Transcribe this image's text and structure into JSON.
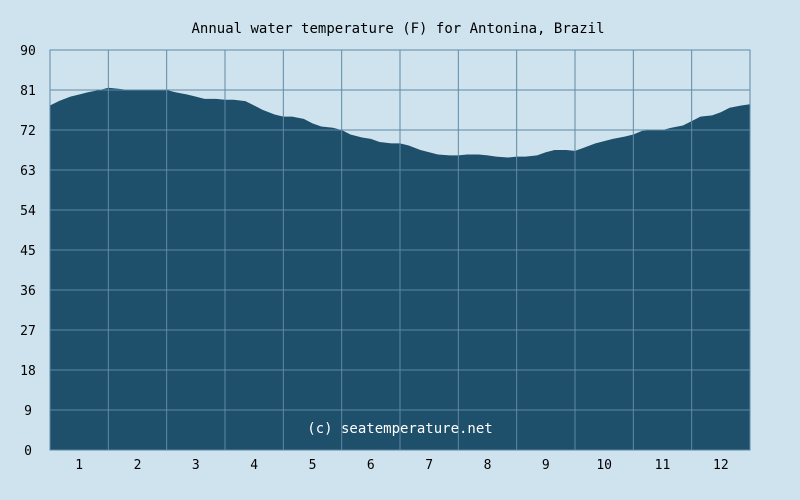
{
  "chart_data": {
    "type": "area",
    "title": "Annual water temperature (F) for Antonina, Brazil",
    "xlabel": "",
    "ylabel": "",
    "categories": [
      "1",
      "2",
      "3",
      "4",
      "5",
      "6",
      "7",
      "8",
      "9",
      "10",
      "11",
      "12"
    ],
    "xlim": [
      0.5,
      12.5
    ],
    "ylim": [
      0,
      90
    ],
    "y_ticks": [
      0,
      9,
      18,
      27,
      36,
      45,
      54,
      63,
      72,
      81,
      90
    ],
    "grid": true,
    "legend": "none",
    "annotation": "(c) seatemperature.net",
    "series": [
      {
        "x": [
          0.5,
          0.65,
          0.85,
          1.0,
          1.15,
          1.35,
          1.5,
          1.65,
          1.85,
          2.0,
          2.15,
          2.35,
          2.5,
          2.65,
          2.85,
          3.0,
          3.15,
          3.35,
          3.5,
          3.65,
          3.85,
          4.0,
          4.15,
          4.35,
          4.5,
          4.65,
          4.85,
          5.0,
          5.15,
          5.35,
          5.5,
          5.65,
          5.85,
          6.0,
          6.15,
          6.35,
          6.5,
          6.65,
          6.85,
          7.0,
          7.15,
          7.35,
          7.5,
          7.65,
          7.85,
          8.0,
          8.15,
          8.35,
          8.5,
          8.65,
          8.85,
          9.0,
          9.15,
          9.35,
          9.5,
          9.65,
          9.85,
          10.0,
          10.15,
          10.35,
          10.5,
          10.65,
          10.85,
          11.0,
          11.15,
          11.35,
          11.5,
          11.65,
          11.85,
          12.0,
          12.15,
          12.35,
          12.5
        ],
        "values": [
          77.5,
          78.5,
          79.5,
          80.0,
          80.5,
          81.0,
          81.5,
          81.3,
          81.0,
          81.0,
          81.0,
          81.0,
          81.0,
          80.5,
          80.0,
          79.5,
          79.0,
          79.0,
          78.8,
          78.8,
          78.5,
          77.5,
          76.5,
          75.5,
          75.0,
          75.0,
          74.5,
          73.5,
          72.8,
          72.5,
          72.0,
          71.0,
          70.3,
          70.0,
          69.3,
          69.0,
          69.0,
          68.5,
          67.5,
          67.0,
          66.5,
          66.3,
          66.3,
          66.5,
          66.5,
          66.3,
          66.0,
          65.8,
          66.0,
          66.0,
          66.3,
          67.0,
          67.5,
          67.5,
          67.3,
          68.0,
          69.0,
          69.5,
          70.0,
          70.5,
          71.0,
          71.8,
          72.0,
          72.0,
          72.5,
          73.0,
          74.0,
          75.0,
          75.3,
          76.0,
          77.0,
          77.5,
          77.8
        ]
      }
    ],
    "colors": {
      "background": "#cfe3ef",
      "area": "#1e4f6b",
      "grid": "#5f8aa4"
    }
  }
}
